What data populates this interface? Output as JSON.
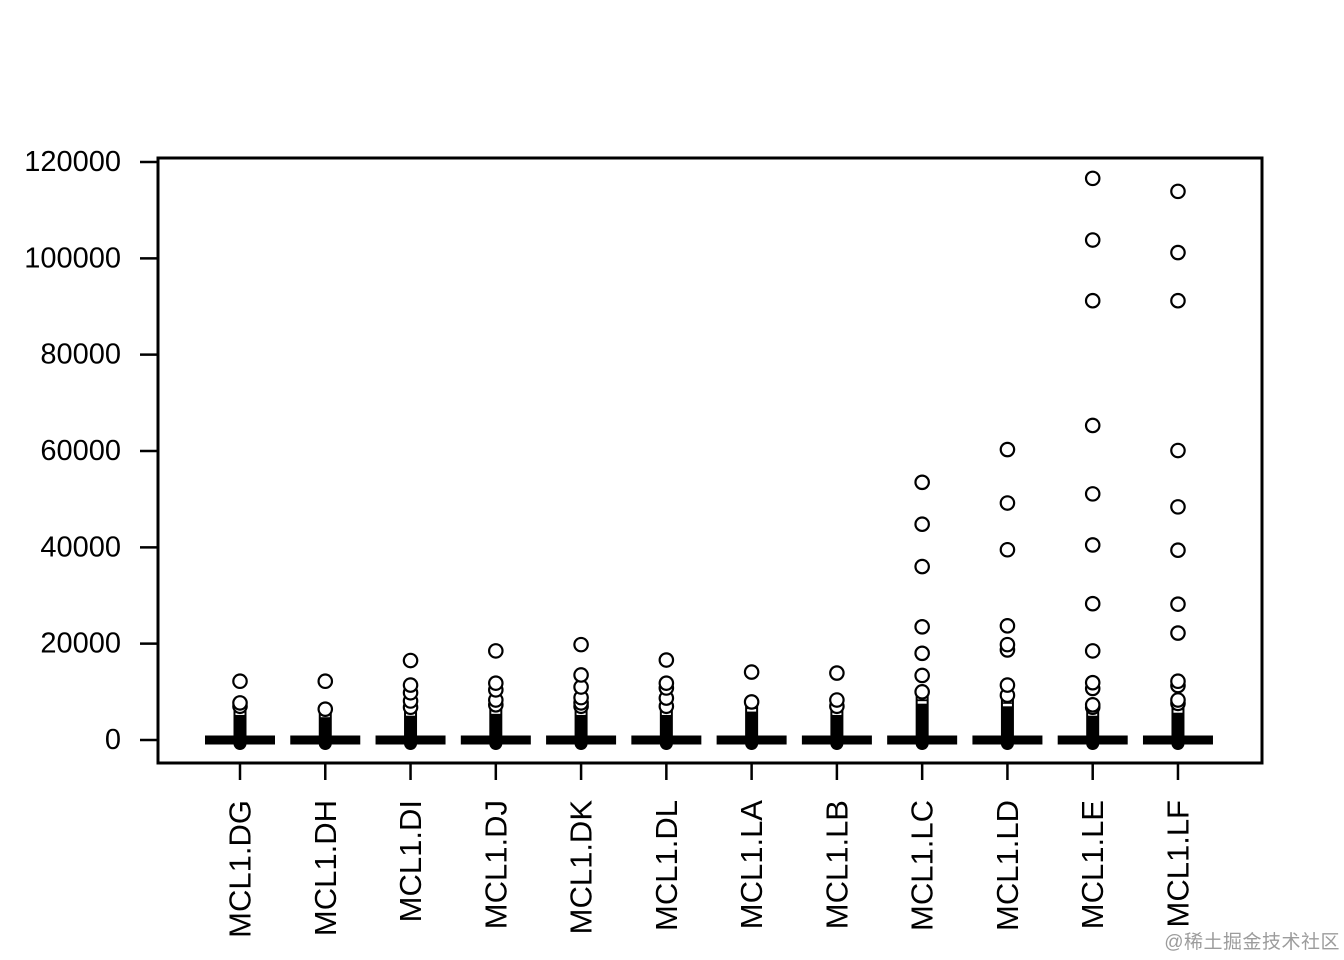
{
  "watermark": {
    "text": "@稀土掘金技术社区",
    "color": "#9c9c9c"
  },
  "chart_data": {
    "type": "boxplot",
    "title": "",
    "xlabel": "",
    "ylabel": "",
    "ylim": [
      0,
      120000
    ],
    "yticks": [
      0,
      20000,
      40000,
      60000,
      80000,
      100000,
      120000
    ],
    "grid": false,
    "legend": false,
    "point_style": "open-circle",
    "axis_color": "#000000",
    "categories": [
      "MCL1.DG",
      "MCL1.DH",
      "MCL1.DI",
      "MCL1.DJ",
      "MCL1.DK",
      "MCL1.DL",
      "MCL1.LA",
      "MCL1.LB",
      "MCL1.LC",
      "MCL1.LD",
      "MCL1.LE",
      "MCL1.LF"
    ],
    "series": [
      {
        "name": "MCL1.DG",
        "median": 0,
        "dense_outliers_to": 7000,
        "outliers": [
          12200,
          7700
        ]
      },
      {
        "name": "MCL1.DH",
        "median": 0,
        "dense_outliers_to": 6400,
        "outliers": [
          12200
        ]
      },
      {
        "name": "MCL1.DI",
        "median": 0,
        "dense_outliers_to": 6800,
        "outliers": [
          16500,
          11400,
          9800,
          8100
        ]
      },
      {
        "name": "MCL1.DJ",
        "median": 0,
        "dense_outliers_to": 7300,
        "outliers": [
          18500,
          11800,
          10400,
          8300
        ]
      },
      {
        "name": "MCL1.DK",
        "median": 0,
        "dense_outliers_to": 7000,
        "outliers": [
          19800,
          13500,
          11000,
          8800,
          7700
        ]
      },
      {
        "name": "MCL1.DL",
        "median": 0,
        "dense_outliers_to": 7000,
        "outliers": [
          16600,
          11800,
          10800,
          8700
        ]
      },
      {
        "name": "MCL1.LA",
        "median": 0,
        "dense_outliers_to": 7900,
        "outliers": [
          14100
        ]
      },
      {
        "name": "MCL1.LB",
        "median": 0,
        "dense_outliers_to": 7000,
        "outliers": [
          13900,
          8300
        ]
      },
      {
        "name": "MCL1.LC",
        "median": 0,
        "dense_outliers_to": 10000,
        "outliers": [
          53500,
          44800,
          36000,
          23500,
          18000,
          13400
        ]
      },
      {
        "name": "MCL1.LD",
        "median": 0,
        "dense_outliers_to": 9300,
        "outliers": [
          60300,
          49200,
          39500,
          23700,
          19800,
          18700,
          11400
        ]
      },
      {
        "name": "MCL1.LE",
        "median": 0,
        "dense_outliers_to": 6800,
        "outliers": [
          116600,
          103800,
          91200,
          65300,
          51100,
          40500,
          28300,
          18500,
          11900,
          10700,
          7300
        ]
      },
      {
        "name": "MCL1.LF",
        "median": 0,
        "dense_outliers_to": 7600,
        "outliers": [
          113900,
          101200,
          91200,
          60100,
          48400,
          39400,
          28200,
          22200,
          12200,
          11300,
          8300
        ]
      }
    ]
  }
}
